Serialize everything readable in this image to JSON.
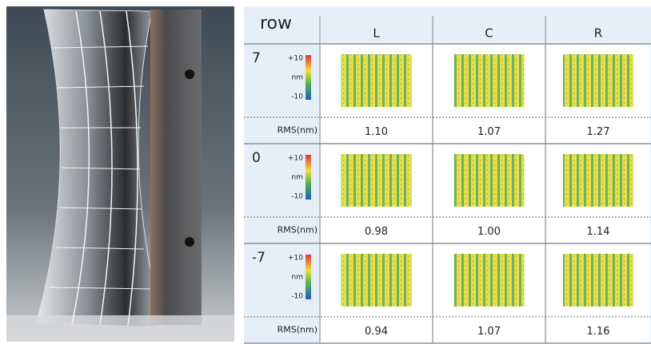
{
  "table": {
    "header": [
      "row",
      "L",
      "C",
      "R"
    ],
    "colorbar": {
      "max": "+10",
      "unit": "nm",
      "min": "-10"
    },
    "rows": [
      {
        "label": "7",
        "rms_label": "RMS(nm)",
        "rms": [
          "1.10",
          "1.07",
          "1.27"
        ]
      },
      {
        "label": "0",
        "rms_label": "RMS(nm)",
        "rms": [
          "0.98",
          "1.00",
          "1.14"
        ]
      },
      {
        "label": "-7",
        "rms_label": "RMS(nm)",
        "rms": [
          "0.94",
          "1.07",
          "1.16"
        ]
      }
    ]
  }
}
